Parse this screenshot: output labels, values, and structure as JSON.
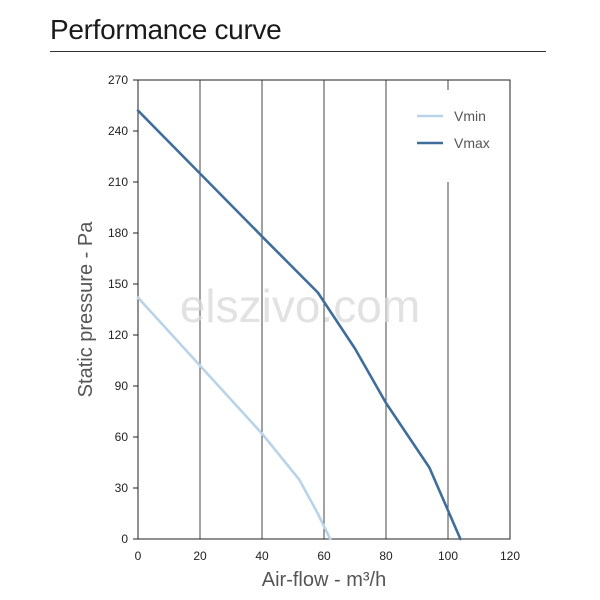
{
  "header": {
    "title": "Performance curve"
  },
  "watermark": "elszivo.com",
  "chart_data": {
    "type": "line",
    "xlabel": "Air-flow - m³/h",
    "ylabel": "Static pressure - Pa",
    "xlim": [
      0,
      120
    ],
    "ylim": [
      0,
      270
    ],
    "xticks": [
      0,
      20,
      40,
      60,
      80,
      100,
      120
    ],
    "yticks": [
      0,
      30,
      60,
      90,
      120,
      150,
      180,
      210,
      240,
      270
    ],
    "grid": "vertical",
    "legend_position": "top-right",
    "series": [
      {
        "name": "Vmin",
        "color": "#b9d3e8",
        "points": [
          [
            0,
            142
          ],
          [
            20,
            102
          ],
          [
            40,
            62
          ],
          [
            52,
            35
          ],
          [
            58,
            15
          ],
          [
            62,
            0
          ]
        ]
      },
      {
        "name": "Vmax",
        "color": "#3f6e9c",
        "points": [
          [
            0,
            252
          ],
          [
            20,
            215
          ],
          [
            40,
            178
          ],
          [
            58,
            145
          ],
          [
            70,
            112
          ],
          [
            80,
            80
          ],
          [
            94,
            42
          ],
          [
            104,
            0
          ]
        ]
      }
    ]
  }
}
